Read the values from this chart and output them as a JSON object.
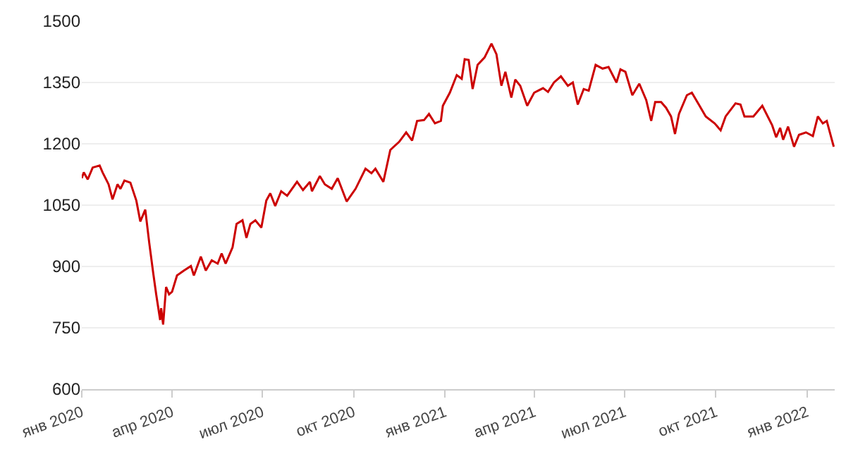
{
  "chart_data": {
    "type": "line",
    "x": [
      "2020-01-01",
      "2020-01-03",
      "2020-01-07",
      "2020-01-12",
      "2020-01-19",
      "2020-01-22",
      "2020-01-28",
      "2020-02-01",
      "2020-02-06",
      "2020-02-09",
      "2020-02-13",
      "2020-02-19",
      "2020-02-25",
      "2020-02-29",
      "2020-03-05",
      "2020-03-09",
      "2020-03-13",
      "2020-03-16",
      "2020-03-20",
      "2020-03-21",
      "2020-03-23",
      "2020-03-26",
      "2020-03-29",
      "2020-04-01",
      "2020-04-06",
      "2020-04-13",
      "2020-04-20",
      "2020-04-23",
      "2020-04-30",
      "2020-05-05",
      "2020-05-11",
      "2020-05-17",
      "2020-05-21",
      "2020-05-25",
      "2020-06-01",
      "2020-06-05",
      "2020-06-11",
      "2020-06-15",
      "2020-06-19",
      "2020-06-24",
      "2020-06-30",
      "2020-07-05",
      "2020-07-09",
      "2020-07-14",
      "2020-07-20",
      "2020-07-26",
      "2020-08-05",
      "2020-08-11",
      "2020-08-18",
      "2020-08-20",
      "2020-08-28",
      "2020-09-02",
      "2020-09-09",
      "2020-09-15",
      "2020-09-24",
      "2020-10-03",
      "2020-10-13",
      "2020-10-19",
      "2020-10-23",
      "2020-10-31",
      "2020-11-07",
      "2020-11-16",
      "2020-11-23",
      "2020-11-29",
      "2020-12-04",
      "2020-12-11",
      "2020-12-16",
      "2020-12-22",
      "2020-12-28",
      "2020-12-30",
      "2021-01-06",
      "2021-01-13",
      "2021-01-18",
      "2021-01-21",
      "2021-01-25",
      "2021-01-29",
      "2021-02-03",
      "2021-02-10",
      "2021-02-17",
      "2021-02-22",
      "2021-02-27",
      "2021-03-03",
      "2021-03-09",
      "2021-03-13",
      "2021-03-18",
      "2021-03-25",
      "2021-04-01",
      "2021-04-10",
      "2021-04-15",
      "2021-04-21",
      "2021-04-28",
      "2021-05-05",
      "2021-05-10",
      "2021-05-15",
      "2021-05-21",
      "2021-05-26",
      "2021-06-02",
      "2021-06-09",
      "2021-06-15",
      "2021-06-23",
      "2021-06-27",
      "2021-07-02",
      "2021-07-09",
      "2021-07-16",
      "2021-07-23",
      "2021-07-28",
      "2021-08-01",
      "2021-08-07",
      "2021-08-12",
      "2021-08-17",
      "2021-08-21",
      "2021-08-25",
      "2021-09-02",
      "2021-09-07",
      "2021-09-14",
      "2021-09-21",
      "2021-09-30",
      "2021-10-06",
      "2021-10-11",
      "2021-10-21",
      "2021-10-26",
      "2021-10-30",
      "2021-11-08",
      "2021-11-17",
      "2021-11-27",
      "2021-12-01",
      "2021-12-05",
      "2021-12-08",
      "2021-12-13",
      "2021-12-19",
      "2021-12-24",
      "2021-12-31",
      "2022-01-07",
      "2022-01-12",
      "2022-01-17",
      "2022-01-21",
      "2022-01-28"
    ],
    "series": [
      {
        "color": "#cc0000",
        "values": [
          1116,
          1130,
          1113,
          1142,
          1147,
          1130,
          1101,
          1064,
          1101,
          1090,
          1110,
          1105,
          1061,
          1010,
          1039,
          958,
          884,
          832,
          769,
          798,
          758,
          850,
          832,
          838,
          878,
          890,
          901,
          878,
          924,
          890,
          915,
          907,
          932,
          907,
          947,
          1004,
          1013,
          970,
          1004,
          1013,
          995,
          1061,
          1079,
          1048,
          1084,
          1073,
          1107,
          1087,
          1107,
          1084,
          1121,
          1101,
          1090,
          1116,
          1059,
          1090,
          1139,
          1128,
          1139,
          1107,
          1185,
          1205,
          1228,
          1208,
          1256,
          1258,
          1273,
          1250,
          1256,
          1293,
          1325,
          1368,
          1359,
          1407,
          1405,
          1334,
          1393,
          1411,
          1445,
          1419,
          1342,
          1376,
          1313,
          1357,
          1342,
          1293,
          1325,
          1336,
          1327,
          1350,
          1365,
          1342,
          1350,
          1296,
          1334,
          1330,
          1393,
          1384,
          1388,
          1350,
          1382,
          1376,
          1319,
          1347,
          1307,
          1256,
          1302,
          1302,
          1288,
          1267,
          1224,
          1273,
          1319,
          1325,
          1296,
          1267,
          1250,
          1233,
          1267,
          1299,
          1296,
          1267,
          1267,
          1293,
          1245,
          1216,
          1239,
          1210,
          1242,
          1193,
          1222,
          1228,
          1219,
          1267,
          1250,
          1256,
          1193
        ]
      }
    ],
    "xlim": [
      "2020-01-01",
      "2022-01-29"
    ],
    "xticks": [
      {
        "value": "2020-01-01",
        "label": "янв 2020"
      },
      {
        "value": "2020-04-01",
        "label": "апр 2020"
      },
      {
        "value": "2020-07-01",
        "label": "июл 2020"
      },
      {
        "value": "2020-10-01",
        "label": "окт 2020"
      },
      {
        "value": "2021-01-01",
        "label": "янв 2021"
      },
      {
        "value": "2021-04-01",
        "label": "апр 2021"
      },
      {
        "value": "2021-07-01",
        "label": "июл 2021"
      },
      {
        "value": "2021-10-01",
        "label": "окт 2021"
      },
      {
        "value": "2022-01-01",
        "label": "янв 2022"
      }
    ],
    "ylim": [
      600,
      1500
    ],
    "yticks": [
      600,
      750,
      900,
      1050,
      1200,
      1350,
      1500
    ],
    "grid": "y",
    "marker": "none",
    "line_style": "solid"
  }
}
